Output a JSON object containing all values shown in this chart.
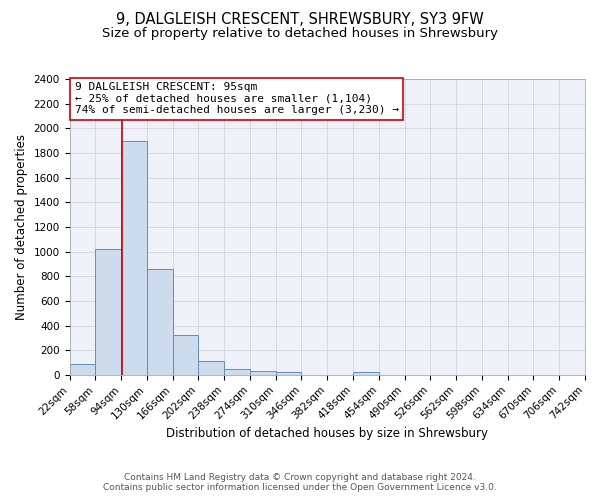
{
  "title": "9, DALGLEISH CRESCENT, SHREWSBURY, SY3 9FW",
  "subtitle": "Size of property relative to detached houses in Shrewsbury",
  "xlabel": "Distribution of detached houses by size in Shrewsbury",
  "ylabel": "Number of detached properties",
  "bin_edges": [
    22,
    58,
    94,
    130,
    166,
    202,
    238,
    274,
    310,
    346,
    382,
    418,
    454,
    490,
    526,
    562,
    598,
    634,
    670,
    706,
    742
  ],
  "bin_labels": [
    "22sqm",
    "58sqm",
    "94sqm",
    "130sqm",
    "166sqm",
    "202sqm",
    "238sqm",
    "274sqm",
    "310sqm",
    "346sqm",
    "382sqm",
    "418sqm",
    "454sqm",
    "490sqm",
    "526sqm",
    "562sqm",
    "598sqm",
    "634sqm",
    "670sqm",
    "706sqm",
    "742sqm"
  ],
  "bar_heights": [
    90,
    1020,
    1900,
    860,
    320,
    115,
    50,
    35,
    25,
    0,
    0,
    25,
    0,
    0,
    0,
    0,
    0,
    0,
    0,
    0
  ],
  "bar_color": "#ccdcec",
  "bar_edge_color": "#6090b8",
  "ylim": [
    0,
    2400
  ],
  "yticks": [
    0,
    200,
    400,
    600,
    800,
    1000,
    1200,
    1400,
    1600,
    1800,
    2000,
    2200,
    2400
  ],
  "property_line_x": 95,
  "property_line_color": "#cc0000",
  "annotation_line1": "9 DALGLEISH CRESCENT: 95sqm",
  "annotation_line2": "← 25% of detached houses are smaller (1,104)",
  "annotation_line3": "74% of semi-detached houses are larger (3,230) →",
  "annotation_box_color": "#ffffff",
  "annotation_box_edge": "#cc0000",
  "footer_line1": "Contains HM Land Registry data © Crown copyright and database right 2024.",
  "footer_line2": "Contains public sector information licensed under the Open Government Licence v3.0.",
  "fig_bg_color": "#ffffff",
  "ax_bg_color": "#eef2f8",
  "grid_color": "#c8cdd8",
  "title_fontsize": 10.5,
  "subtitle_fontsize": 9.5,
  "axis_label_fontsize": 8.5,
  "tick_fontsize": 7.5,
  "annotation_fontsize": 8.0,
  "footer_fontsize": 6.5
}
